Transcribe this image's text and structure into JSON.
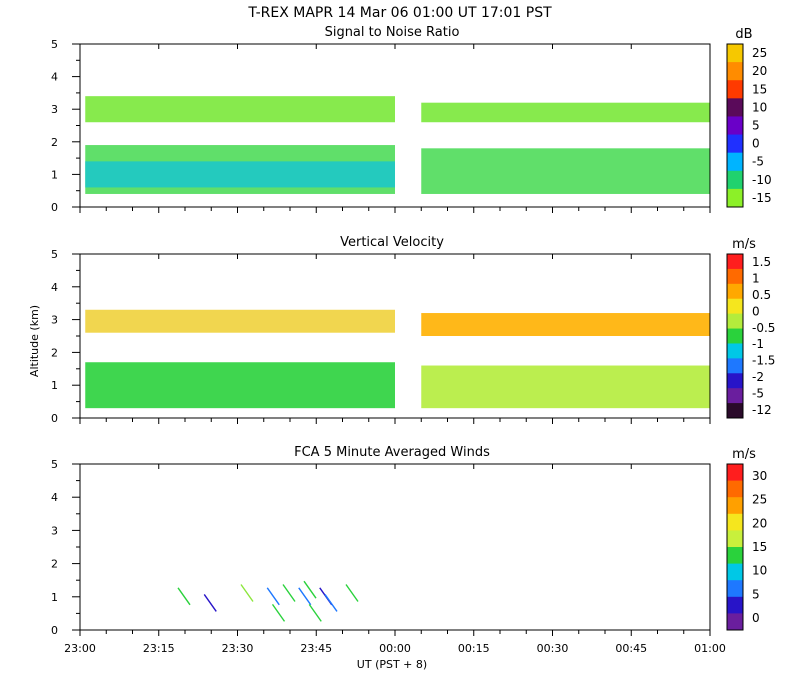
{
  "title": "T-REX   MAPR 14 Mar 06   01:00 UT   17:01   PST",
  "xlabel": "UT  (PST + 8)",
  "ylabel": "Altitude (km)",
  "chart_data": [
    {
      "type": "heatmap",
      "title": "Signal to Noise Ratio",
      "unit": "dB",
      "x_ticks": [
        "23:00",
        "23:15",
        "23:30",
        "23:45",
        "00:00",
        "00:15",
        "00:30",
        "00:45",
        "01:00"
      ],
      "y_ticks": [
        "0",
        "1",
        "2",
        "3",
        "4",
        "5"
      ],
      "ylim": [
        0,
        5
      ],
      "colorbar_ticks": [
        "25",
        "20",
        "15",
        "10",
        "5",
        "0",
        "-5",
        "-10",
        "-15"
      ],
      "colorbar_colors": [
        "#f6c800",
        "#ff8c00",
        "#ff3a00",
        "#5a0a5a",
        "#6a00c8",
        "#2030ff",
        "#00b4ff",
        "#20d26e",
        "#8cf028"
      ],
      "layers": [
        {
          "t0": "23:01",
          "t1": "00:00",
          "alt": [
            2.6,
            3.4
          ],
          "color": "#7ae83a"
        },
        {
          "t0": "00:05",
          "t1": "01:00",
          "alt": [
            2.6,
            3.2
          ],
          "color": "#7ae83a"
        },
        {
          "t0": "23:01",
          "t1": "00:00",
          "alt": [
            0.4,
            1.9
          ],
          "color": "#4fdc5a"
        },
        {
          "t0": "23:01",
          "t1": "00:00",
          "alt": [
            0.6,
            1.4
          ],
          "color": "#1ec8c8"
        },
        {
          "t0": "00:05",
          "t1": "01:00",
          "alt": [
            0.4,
            1.8
          ],
          "color": "#4fdc5a"
        }
      ]
    },
    {
      "type": "heatmap",
      "title": "Vertical Velocity",
      "unit": "m/s",
      "x_ticks": [
        "23:00",
        "23:15",
        "23:30",
        "23:45",
        "00:00",
        "00:15",
        "00:30",
        "00:45",
        "01:00"
      ],
      "y_ticks": [
        "0",
        "1",
        "2",
        "3",
        "4",
        "5"
      ],
      "ylim": [
        0,
        5
      ],
      "colorbar_ticks": [
        "1.5",
        "1",
        "0.5",
        "0",
        "-0.5",
        "-1",
        "-1.5",
        "-2",
        "-5",
        "-12"
      ],
      "colorbar_colors": [
        "#ff1e1e",
        "#ff6a00",
        "#ffa800",
        "#f5e61e",
        "#b4ec3c",
        "#2ad23c",
        "#00c8e6",
        "#1e78ff",
        "#2814c8",
        "#6a1e9e",
        "#2a0a2a"
      ],
      "layers": [
        {
          "t0": "23:01",
          "t1": "00:00",
          "alt": [
            2.6,
            3.3
          ],
          "color": "#f0d23c"
        },
        {
          "t0": "00:05",
          "t1": "01:00",
          "alt": [
            2.5,
            3.2
          ],
          "color": "#ffb000"
        },
        {
          "t0": "23:01",
          "t1": "00:00",
          "alt": [
            0.3,
            1.7
          ],
          "color": "#2ad23c"
        },
        {
          "t0": "00:05",
          "t1": "01:00",
          "alt": [
            0.3,
            1.6
          ],
          "color": "#b4ec3c"
        }
      ]
    },
    {
      "type": "scatter",
      "title": "FCA 5 Minute Averaged Winds",
      "unit": "m/s",
      "x_ticks": [
        "23:00",
        "23:15",
        "23:30",
        "23:45",
        "00:00",
        "00:15",
        "00:30",
        "00:45",
        "01:00"
      ],
      "y_ticks": [
        "0",
        "1",
        "2",
        "3",
        "4",
        "5"
      ],
      "ylim": [
        0,
        5
      ],
      "colorbar_ticks": [
        "30",
        "25",
        "20",
        "15",
        "10",
        "5",
        "0"
      ],
      "colorbar_colors": [
        "#ff1e1e",
        "#ff6a00",
        "#ffa000",
        "#f5e61e",
        "#c8f03c",
        "#2ad23c",
        "#00c8e6",
        "#1e78ff",
        "#2814c8",
        "#6a1e9e"
      ],
      "barbs": [
        {
          "t": "23:20",
          "alt": 1.0,
          "color": "#2ad23c"
        },
        {
          "t": "23:25",
          "alt": 0.8,
          "color": "#2814c8"
        },
        {
          "t": "23:32",
          "alt": 1.1,
          "color": "#8ce63c"
        },
        {
          "t": "23:37",
          "alt": 1.0,
          "color": "#1e78ff"
        },
        {
          "t": "23:38",
          "alt": 0.5,
          "color": "#2ad23c"
        },
        {
          "t": "23:40",
          "alt": 1.1,
          "color": "#2ad23c"
        },
        {
          "t": "23:43",
          "alt": 1.0,
          "color": "#1e78ff"
        },
        {
          "t": "23:44",
          "alt": 1.2,
          "color": "#2ad23c"
        },
        {
          "t": "23:45",
          "alt": 0.5,
          "color": "#2ad23c"
        },
        {
          "t": "23:47",
          "alt": 1.0,
          "color": "#2814c8"
        },
        {
          "t": "23:48",
          "alt": 0.8,
          "color": "#1e78ff"
        },
        {
          "t": "23:52",
          "alt": 1.1,
          "color": "#2ad23c"
        }
      ]
    }
  ]
}
